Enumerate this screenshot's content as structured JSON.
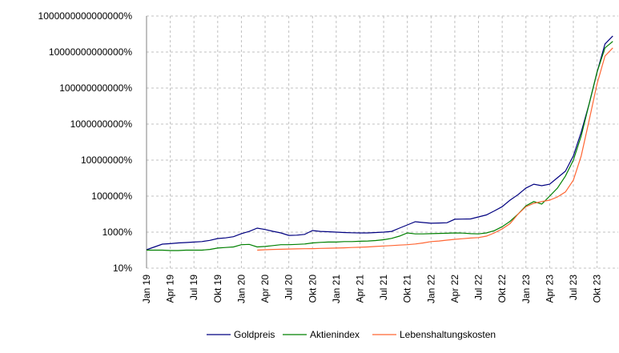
{
  "chart_data": {
    "type": "line",
    "log_y": true,
    "grid": true,
    "legend": "bottom",
    "categories": [
      "Jan 19",
      null,
      null,
      "Apr 19",
      null,
      null,
      "Jul 19",
      null,
      null,
      "Okt 19",
      null,
      null,
      "Jan 20",
      null,
      null,
      "Apr 20",
      null,
      null,
      "Jul 20",
      null,
      null,
      "Okt 20",
      null,
      null,
      "Jan 21",
      null,
      null,
      "Apr 21",
      null,
      null,
      "Jul 21",
      null,
      null,
      "Okt 21",
      null,
      null,
      "Jan 22",
      null,
      null,
      "Apr 22",
      null,
      null,
      "Jul 22",
      null,
      null,
      "Okt 22",
      null,
      null,
      "Jan 23",
      null,
      null,
      "Apr 23",
      null,
      null,
      "Jul 23",
      null,
      null,
      "Okt 23",
      null,
      null
    ],
    "ylim": [
      10,
      1000000000000000
    ],
    "yticks": [
      {
        "value": 10,
        "label": "10%"
      },
      {
        "value": 1000,
        "label": "1000%"
      },
      {
        "value": 100000,
        "label": "100000%"
      },
      {
        "value": 10000000,
        "label": "10000000%"
      },
      {
        "value": 1000000000,
        "label": "1000000000%"
      },
      {
        "value": 100000000000,
        "label": "100000000000%"
      },
      {
        "value": 10000000000000,
        "label": "10000000000000%"
      },
      {
        "value": 1000000000000000,
        "label": "1000000000000000%"
      }
    ],
    "series": [
      {
        "name": "Goldpreis",
        "color": "#000080",
        "values": [
          105,
          150,
          215,
          230,
          250,
          265,
          280,
          300,
          350,
          440,
          480,
          560,
          820,
          1100,
          1670,
          1400,
          1110,
          900,
          660,
          680,
          750,
          1230,
          1100,
          1050,
          1000,
          950,
          920,
          900,
          900,
          950,
          1000,
          1100,
          1670,
          2500,
          3800,
          3400,
          3100,
          3200,
          3300,
          5200,
          5300,
          5400,
          7000,
          9000,
          15000,
          26000,
          60000,
          120000,
          280000,
          460000,
          380000,
          460000,
          1050000,
          2400000,
          17000000,
          360000000,
          13000000000,
          770000000000,
          28000000000000,
          78000000000000
        ]
      },
      {
        "name": "Aktienindex",
        "color": "#008000",
        "values": [
          100,
          100,
          100,
          95,
          95,
          100,
          100,
          100,
          110,
          130,
          140,
          150,
          200,
          210,
          150,
          160,
          180,
          200,
          200,
          210,
          220,
          250,
          270,
          280,
          280,
          300,
          300,
          310,
          320,
          340,
          380,
          450,
          600,
          900,
          800,
          800,
          820,
          850,
          870,
          900,
          880,
          820,
          800,
          900,
          1200,
          2000,
          4000,
          10000,
          29000,
          50000,
          36000,
          100000,
          280000,
          1300000,
          10000000,
          220000000,
          13000000000,
          770000000000,
          17000000000000,
          39000000000000
        ]
      },
      {
        "name": "Lebenshaltungskosten",
        "color": "#ff6633",
        "values": [
          null,
          null,
          null,
          null,
          null,
          null,
          null,
          null,
          null,
          null,
          null,
          null,
          null,
          null,
          100,
          105,
          110,
          112,
          115,
          118,
          120,
          122,
          125,
          128,
          130,
          135,
          140,
          145,
          150,
          160,
          170,
          180,
          190,
          200,
          220,
          250,
          300,
          320,
          360,
          400,
          430,
          470,
          500,
          600,
          900,
          1500,
          3000,
          10000,
          26000,
          40000,
          50000,
          60000,
          90000,
          170000,
          770000,
          17000000,
          1600000000,
          170000000000,
          6000000000000,
          17000000000000
        ]
      }
    ]
  }
}
